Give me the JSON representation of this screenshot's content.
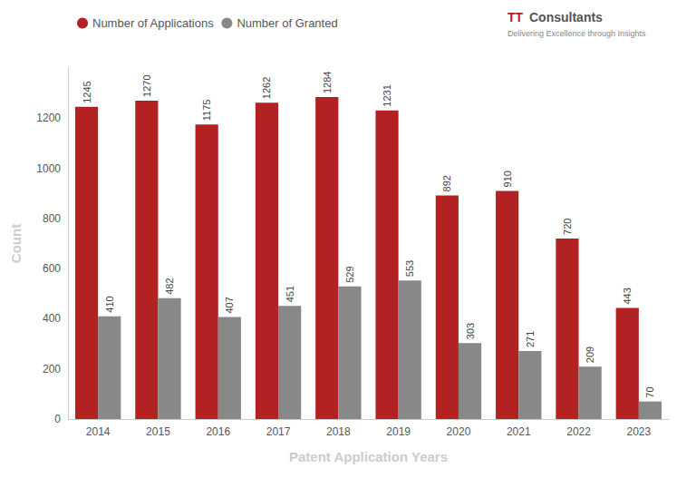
{
  "chart_data": {
    "type": "bar",
    "categories": [
      "2014",
      "2015",
      "2016",
      "2017",
      "2018",
      "2019",
      "2020",
      "2021",
      "2022",
      "2023"
    ],
    "series": [
      {
        "name": "Number of Applications",
        "color": "#B22222",
        "values": [
          1245,
          1270,
          1175,
          1262,
          1284,
          1231,
          892,
          910,
          720,
          443
        ]
      },
      {
        "name": "Number of Granted",
        "color": "#888888",
        "values": [
          410,
          482,
          407,
          451,
          529,
          553,
          303,
          271,
          209,
          70
        ]
      }
    ],
    "xlabel": "Patent Application Years",
    "ylabel": "Count",
    "ylim": [
      0,
      1400
    ],
    "yticks": [
      0,
      200,
      400,
      600,
      800,
      1000,
      1200
    ],
    "grid": false,
    "legend": "top",
    "data_labels": true,
    "annotations": [
      {
        "text": "TT",
        "color": "#B22222"
      },
      {
        "text": "Consultants",
        "color": "#555555"
      },
      {
        "text": "Delivering Excellence through Insights",
        "color": "#888888"
      }
    ]
  }
}
